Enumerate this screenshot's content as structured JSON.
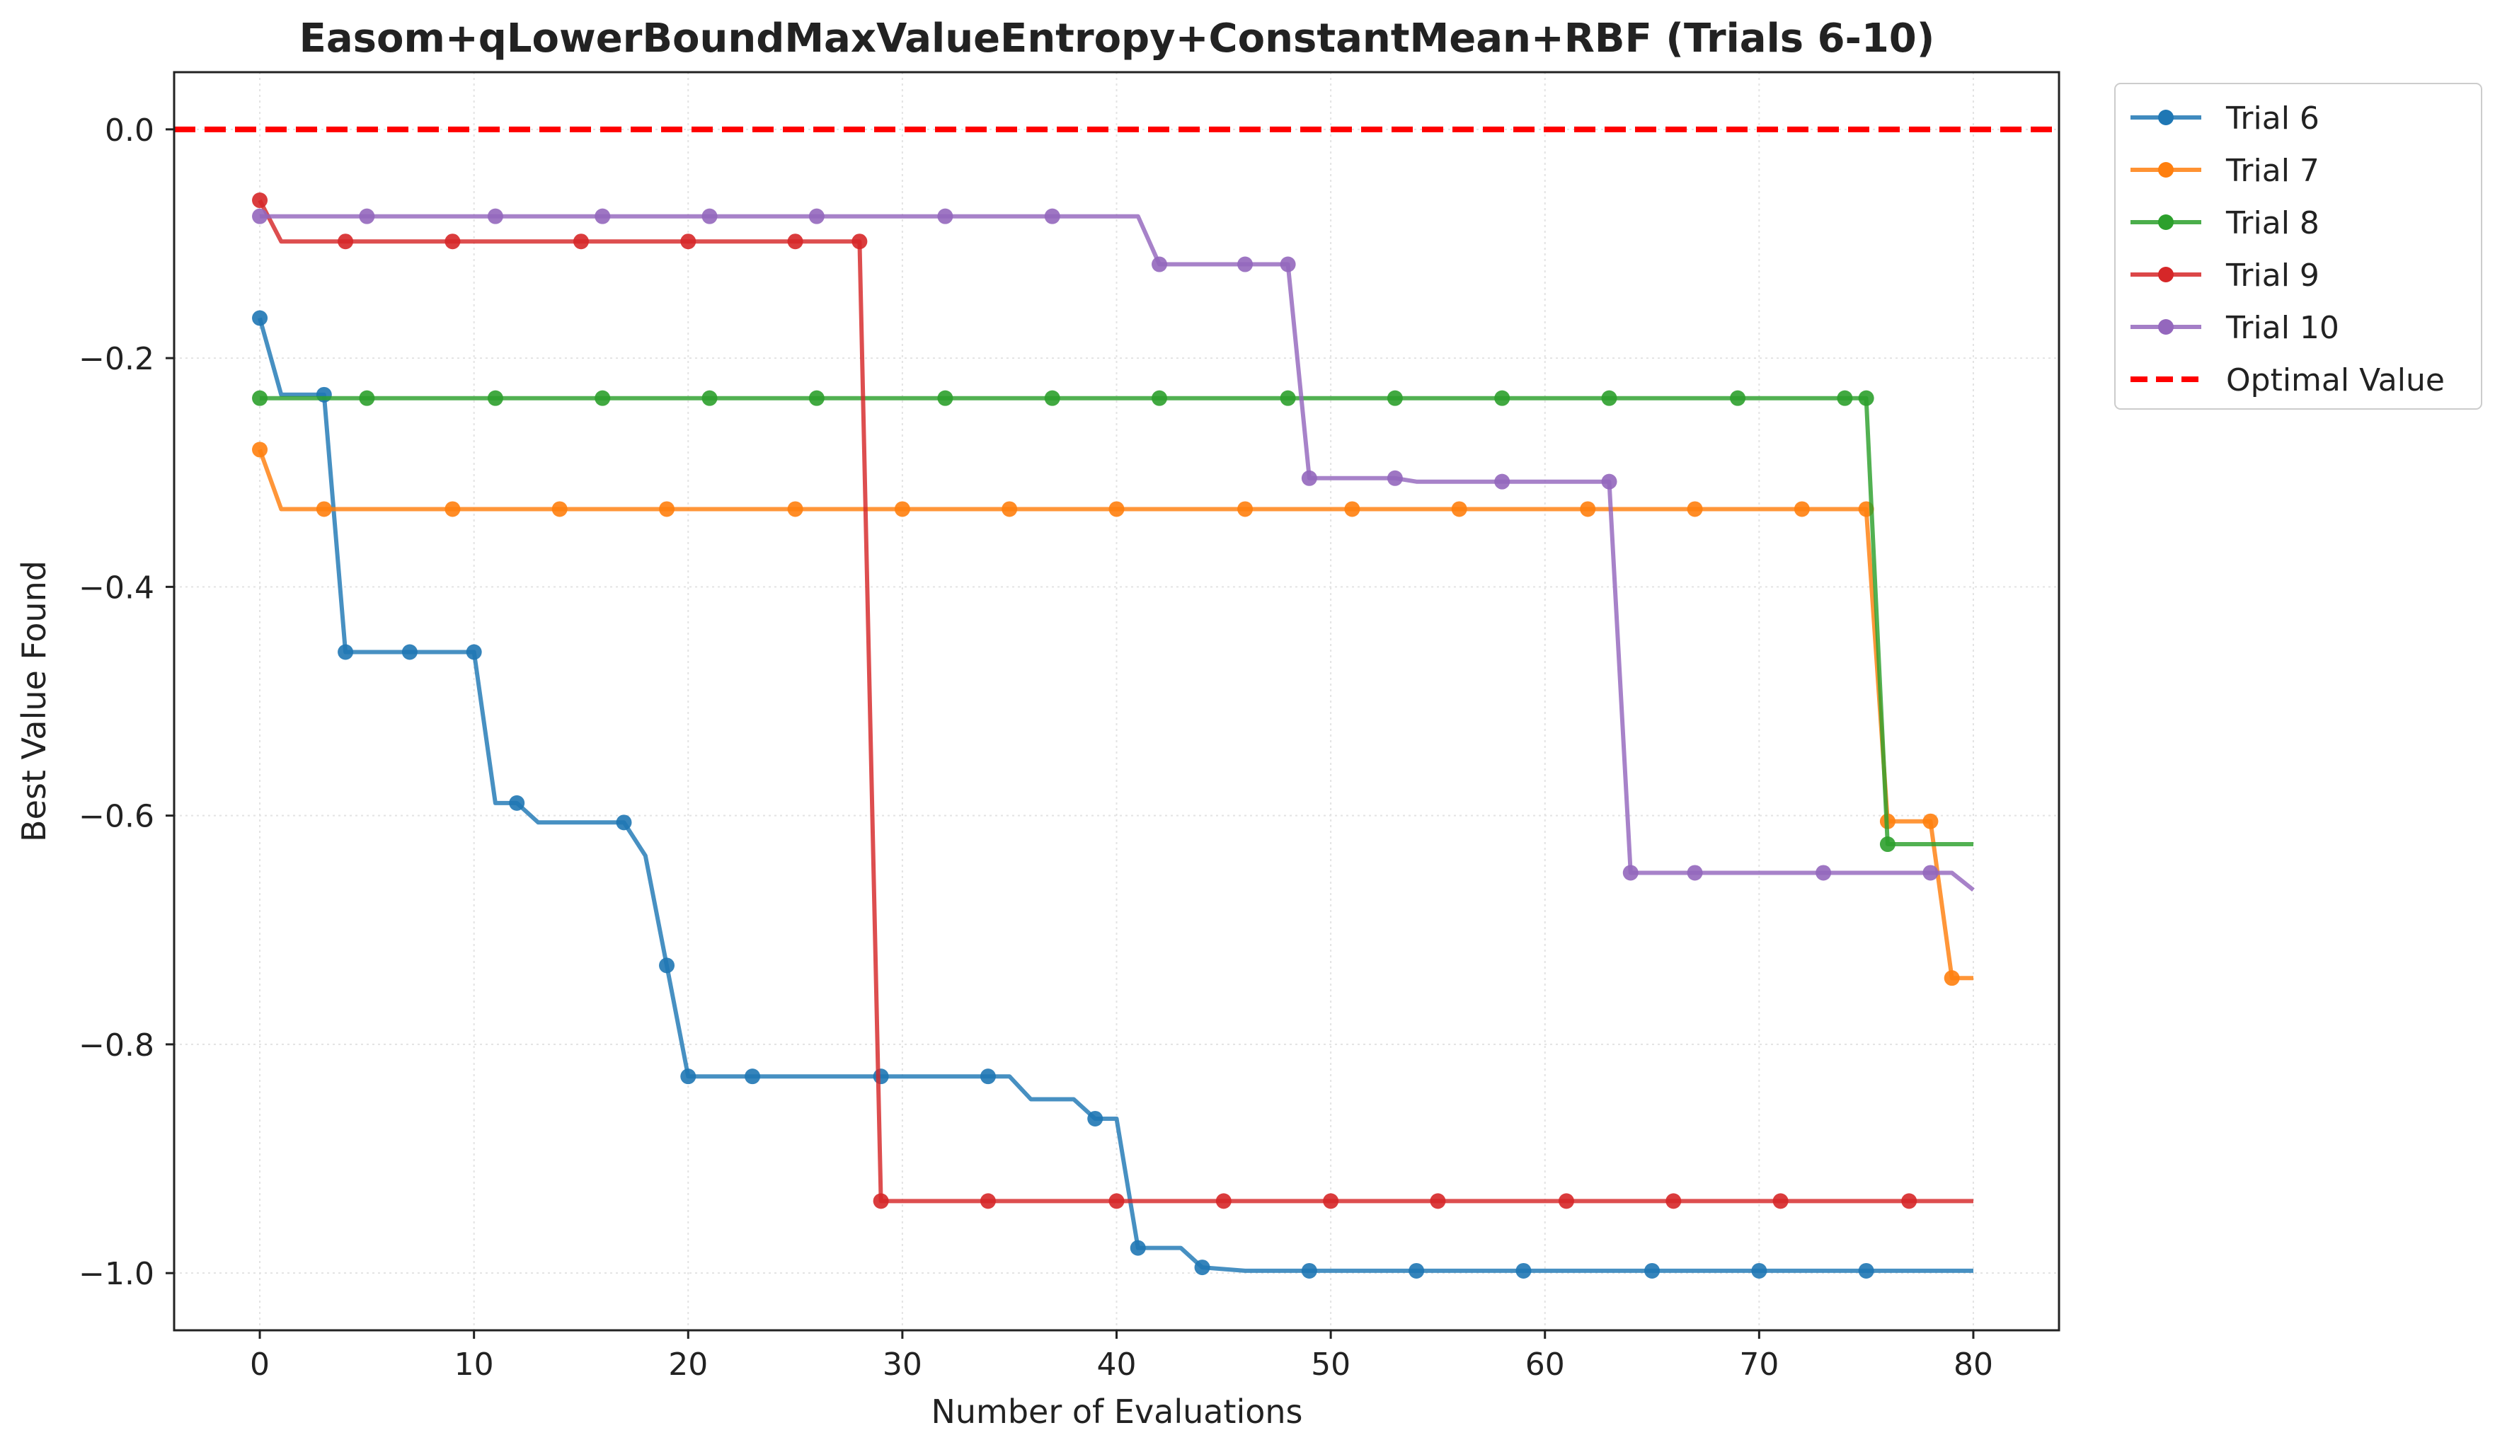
{
  "chart_data": {
    "type": "line",
    "title": "Easom+qLowerBoundMaxValueEntropy+ConstantMean+RBF (Trials 6-10)",
    "xlabel": "Number of Evaluations",
    "ylabel": "Best Value Found",
    "xlim": [
      -4,
      84
    ],
    "ylim": [
      -1.05,
      0.05
    ],
    "xticks": [
      0,
      10,
      20,
      30,
      40,
      50,
      60,
      70,
      80
    ],
    "xtick_labels": [
      "0",
      "10",
      "20",
      "30",
      "40",
      "50",
      "60",
      "70",
      "80"
    ],
    "yticks": [
      0.0,
      -0.2,
      -0.4,
      -0.6,
      -0.8,
      -1.0
    ],
    "ytick_labels": [
      "0.0",
      "−0.2",
      "−0.4",
      "−0.6",
      "−0.8",
      "−1.0"
    ],
    "grid": true,
    "legend_position": "outside-right-top",
    "series": [
      {
        "name": "Trial 6",
        "color": "#1f77b4",
        "line": [
          [
            0,
            -0.165
          ],
          [
            1,
            -0.232
          ],
          [
            3,
            -0.232
          ],
          [
            4,
            -0.457
          ],
          [
            10,
            -0.457
          ],
          [
            11,
            -0.589
          ],
          [
            12,
            -0.589
          ],
          [
            13,
            -0.606
          ],
          [
            17,
            -0.606
          ],
          [
            18,
            -0.635
          ],
          [
            19,
            -0.731
          ],
          [
            20,
            -0.828
          ],
          [
            34,
            -0.828
          ],
          [
            35,
            -0.828
          ],
          [
            36,
            -0.848
          ],
          [
            38,
            -0.848
          ],
          [
            39,
            -0.865
          ],
          [
            40,
            -0.865
          ],
          [
            41,
            -0.978
          ],
          [
            43,
            -0.978
          ],
          [
            44,
            -0.995
          ],
          [
            46,
            -0.998
          ],
          [
            80,
            -0.998
          ]
        ],
        "markers": [
          [
            0,
            -0.165
          ],
          [
            3,
            -0.232
          ],
          [
            4,
            -0.457
          ],
          [
            7,
            -0.457
          ],
          [
            10,
            -0.457
          ],
          [
            12,
            -0.589
          ],
          [
            17,
            -0.606
          ],
          [
            19,
            -0.731
          ],
          [
            20,
            -0.828
          ],
          [
            23,
            -0.828
          ],
          [
            29,
            -0.828
          ],
          [
            34,
            -0.828
          ],
          [
            39,
            -0.865
          ],
          [
            41,
            -0.978
          ],
          [
            44,
            -0.995
          ],
          [
            49,
            -0.998
          ],
          [
            54,
            -0.998
          ],
          [
            59,
            -0.998
          ],
          [
            65,
            -0.998
          ],
          [
            70,
            -0.998
          ],
          [
            75,
            -0.998
          ]
        ]
      },
      {
        "name": "Trial 7",
        "color": "#ff7f0e",
        "line": [
          [
            0,
            -0.28
          ],
          [
            1,
            -0.332
          ],
          [
            75,
            -0.332
          ],
          [
            76,
            -0.605
          ],
          [
            78,
            -0.605
          ],
          [
            79,
            -0.742
          ],
          [
            80,
            -0.742
          ]
        ],
        "markers": [
          [
            0,
            -0.28
          ],
          [
            3,
            -0.332
          ],
          [
            9,
            -0.332
          ],
          [
            14,
            -0.332
          ],
          [
            19,
            -0.332
          ],
          [
            25,
            -0.332
          ],
          [
            30,
            -0.332
          ],
          [
            35,
            -0.332
          ],
          [
            40,
            -0.332
          ],
          [
            46,
            -0.332
          ],
          [
            51,
            -0.332
          ],
          [
            56,
            -0.332
          ],
          [
            62,
            -0.332
          ],
          [
            67,
            -0.332
          ],
          [
            72,
            -0.332
          ],
          [
            75,
            -0.332
          ],
          [
            76,
            -0.605
          ],
          [
            78,
            -0.605
          ],
          [
            79,
            -0.742
          ]
        ]
      },
      {
        "name": "Trial 8",
        "color": "#2ca02c",
        "line": [
          [
            0,
            -0.235
          ],
          [
            75,
            -0.235
          ],
          [
            76,
            -0.625
          ],
          [
            80,
            -0.625
          ]
        ],
        "markers": [
          [
            0,
            -0.235
          ],
          [
            5,
            -0.235
          ],
          [
            11,
            -0.235
          ],
          [
            16,
            -0.235
          ],
          [
            21,
            -0.235
          ],
          [
            26,
            -0.235
          ],
          [
            32,
            -0.235
          ],
          [
            37,
            -0.235
          ],
          [
            42,
            -0.235
          ],
          [
            48,
            -0.235
          ],
          [
            53,
            -0.235
          ],
          [
            58,
            -0.235
          ],
          [
            63,
            -0.235
          ],
          [
            69,
            -0.235
          ],
          [
            74,
            -0.235
          ],
          [
            75,
            -0.235
          ],
          [
            76,
            -0.625
          ]
        ]
      },
      {
        "name": "Trial 9",
        "color": "#d62728",
        "line": [
          [
            0,
            -0.062
          ],
          [
            1,
            -0.098
          ],
          [
            28,
            -0.098
          ],
          [
            29,
            -0.937
          ],
          [
            80,
            -0.937
          ]
        ],
        "markers": [
          [
            0,
            -0.062
          ],
          [
            4,
            -0.098
          ],
          [
            9,
            -0.098
          ],
          [
            15,
            -0.098
          ],
          [
            20,
            -0.098
          ],
          [
            25,
            -0.098
          ],
          [
            28,
            -0.098
          ],
          [
            29,
            -0.937
          ],
          [
            34,
            -0.937
          ],
          [
            40,
            -0.937
          ],
          [
            45,
            -0.937
          ],
          [
            50,
            -0.937
          ],
          [
            55,
            -0.937
          ],
          [
            61,
            -0.937
          ],
          [
            66,
            -0.937
          ],
          [
            71,
            -0.937
          ],
          [
            77,
            -0.937
          ]
        ]
      },
      {
        "name": "Trial 10",
        "color": "#9467bd",
        "line": [
          [
            0,
            -0.076
          ],
          [
            41,
            -0.076
          ],
          [
            42,
            -0.118
          ],
          [
            48,
            -0.118
          ],
          [
            49,
            -0.305
          ],
          [
            53,
            -0.305
          ],
          [
            54,
            -0.308
          ],
          [
            63,
            -0.308
          ],
          [
            64,
            -0.65
          ],
          [
            79,
            -0.65
          ],
          [
            80,
            -0.665
          ]
        ],
        "markers": [
          [
            0,
            -0.076
          ],
          [
            5,
            -0.076
          ],
          [
            11,
            -0.076
          ],
          [
            16,
            -0.076
          ],
          [
            21,
            -0.076
          ],
          [
            26,
            -0.076
          ],
          [
            32,
            -0.076
          ],
          [
            37,
            -0.076
          ],
          [
            42,
            -0.118
          ],
          [
            46,
            -0.118
          ],
          [
            48,
            -0.118
          ],
          [
            49,
            -0.305
          ],
          [
            53,
            -0.305
          ],
          [
            58,
            -0.308
          ],
          [
            63,
            -0.308
          ],
          [
            64,
            -0.65
          ],
          [
            67,
            -0.65
          ],
          [
            73,
            -0.65
          ],
          [
            78,
            -0.65
          ]
        ]
      }
    ],
    "reference_line": {
      "name": "Optimal Value",
      "y": 0.0,
      "color": "#ff0000",
      "style": "dashed"
    }
  }
}
